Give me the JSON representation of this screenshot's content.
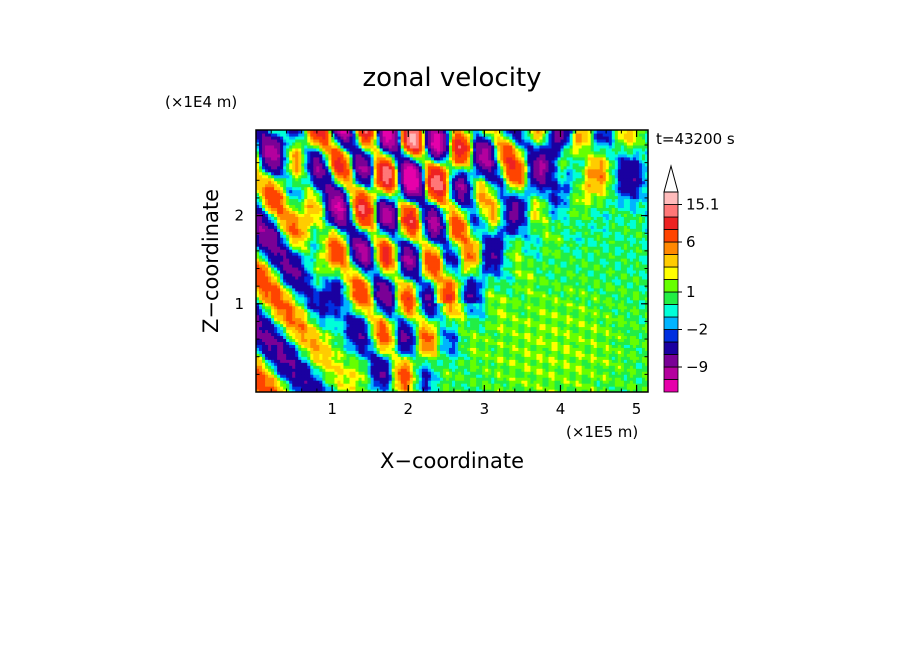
{
  "chart_data": {
    "type": "heatmap",
    "title": "zonal velocity",
    "xlabel": "X−coordinate",
    "ylabel": "Z−coordinate",
    "x_scale_label": "(×1E5 m)",
    "y_scale_label": "(×1E4 m)",
    "time_label": "t=43200 s",
    "xlim": [
      0,
      5.15
    ],
    "ylim": [
      0,
      2.97
    ],
    "x_ticks": [
      "1",
      "2",
      "3",
      "4",
      "5"
    ],
    "x_tick_values": [
      1,
      2,
      3,
      4,
      5
    ],
    "y_ticks": [
      "1",
      "2"
    ],
    "y_tick_values": [
      1,
      2
    ],
    "colorbar": {
      "labels": [
        "15.1",
        "6",
        "1",
        "−2",
        "−9"
      ],
      "label_values": [
        15.1,
        6,
        1,
        -2,
        -9
      ],
      "extend": "max",
      "levels": [
        -15,
        -12,
        -9,
        -6,
        -3,
        -2,
        -1,
        0,
        1,
        2,
        3,
        4.5,
        6,
        9,
        12,
        15.1
      ],
      "colors": [
        "#e600aa",
        "#b4009e",
        "#7a0096",
        "#1a00a0",
        "#0030e0",
        "#00b4ff",
        "#00ffd8",
        "#22ee44",
        "#66ff00",
        "#ffff00",
        "#ffcc00",
        "#ff8800",
        "#ff4400",
        "#ee2222",
        "#ff7777",
        "#ffbbbb"
      ]
    },
    "grid": false,
    "legend": "colorbar-right"
  }
}
